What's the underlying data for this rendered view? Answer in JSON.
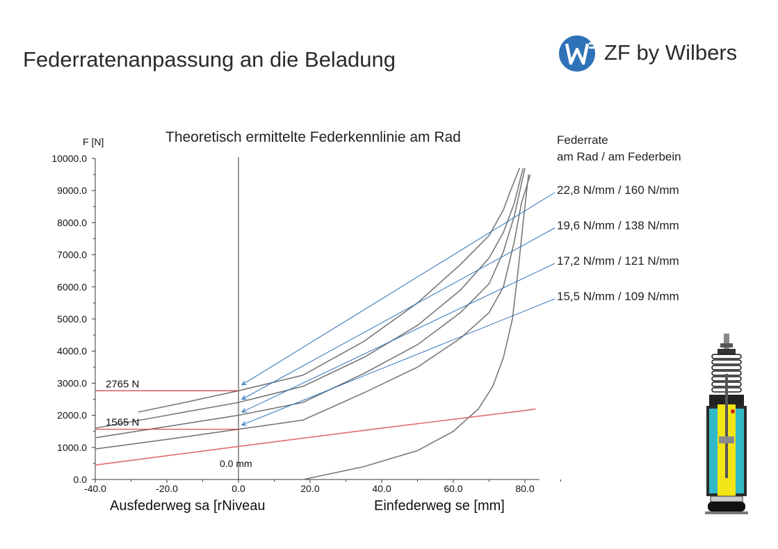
{
  "header": {
    "title": "Federratenanpassung an die Beladung",
    "brand_text": "ZF by Wilbers",
    "brand_color": "#2f72b8"
  },
  "chart_data": {
    "type": "line",
    "title": "Theoretisch ermittelte Federkennlinie am Rad",
    "ylabel": "F [N]",
    "xlabel_left": "Ausfederweg sa [rNiveau",
    "xlabel_right": "Einfederweg se [mm]",
    "xlim": [
      -40,
      85
    ],
    "ylim": [
      0,
      10000
    ],
    "xticks": [
      "-40.0",
      "-20.0",
      "0.0",
      "20.0",
      "40.0",
      "60.0",
      "80.0"
    ],
    "yticks": [
      "0.0",
      "1000.0",
      "2000.0",
      "3000.0",
      "4000.0",
      "5000.0",
      "6000.0",
      "7000.0",
      "8000.0",
      "9000.0",
      "10000.0"
    ],
    "zero_label": "0.0 mm",
    "legend_heading": [
      "Federrate",
      "am Rad / am Federbein"
    ],
    "series": [
      {
        "name": "22,8 N/mm  / 160 N/mm",
        "color": "#777777",
        "x": [
          -28,
          -15,
          0,
          18,
          35,
          50,
          62,
          70,
          74,
          76,
          78.5
        ],
        "y": [
          2100,
          2400,
          2765,
          3250,
          4300,
          5500,
          6700,
          7600,
          8400,
          9000,
          9700
        ]
      },
      {
        "name": "19,6 N/mm  / 138 N/mm",
        "color": "#777777",
        "x": [
          -40,
          -20,
          0,
          18,
          35,
          50,
          62,
          70,
          74,
          77,
          79.5
        ],
        "y": [
          1600,
          2000,
          2400,
          2900,
          3800,
          4800,
          5900,
          6900,
          7700,
          8600,
          9700
        ]
      },
      {
        "name": "17,2 N/mm  / 121 N/mm",
        "color": "#777777",
        "x": [
          -40,
          -20,
          0,
          18,
          35,
          50,
          62,
          70,
          74,
          77,
          80
        ],
        "y": [
          1300,
          1650,
          2000,
          2400,
          3300,
          4200,
          5200,
          6100,
          7100,
          8200,
          9700
        ]
      },
      {
        "name": "15,5 N/mm / 109 N/mm",
        "color": "#777777",
        "x": [
          -40,
          -20,
          0,
          18,
          35,
          50,
          62,
          70,
          74,
          77,
          79,
          81.5
        ],
        "y": [
          950,
          1250,
          1565,
          1850,
          2700,
          3500,
          4400,
          5200,
          6000,
          7400,
          8600,
          9500
        ]
      },
      {
        "name": "",
        "color": "#777777",
        "x": [
          18,
          35,
          50,
          60,
          67,
          71,
          74,
          76.5,
          78,
          79.5,
          81
        ],
        "y": [
          0,
          400,
          900,
          1500,
          2200,
          2900,
          3800,
          5000,
          6400,
          8000,
          9500
        ]
      },
      {
        "name": "",
        "color": "#e06a6a",
        "x": [
          -40,
          0,
          40,
          80,
          83
        ],
        "y": [
          450,
          1030,
          1600,
          2150,
          2200
        ]
      }
    ],
    "annotations": [
      {
        "label": "2765 N",
        "y": 2765
      },
      {
        "label": "1565 N",
        "y": 1565
      }
    ],
    "arrows": [
      {
        "from_label": "22,8 N/mm  / 160 N/mm",
        "to": [
          1,
          2950
        ]
      },
      {
        "from_label": "19,6 N/mm  / 138 N/mm",
        "to": [
          1,
          2500
        ]
      },
      {
        "from_label": "17,2 N/mm  / 121 N/mm",
        "to": [
          1,
          2100
        ]
      },
      {
        "from_label": "15,5 N/mm / 109 N/mm",
        "to": [
          1,
          1700
        ]
      }
    ],
    "grid": false,
    "legend_placement": "right"
  }
}
